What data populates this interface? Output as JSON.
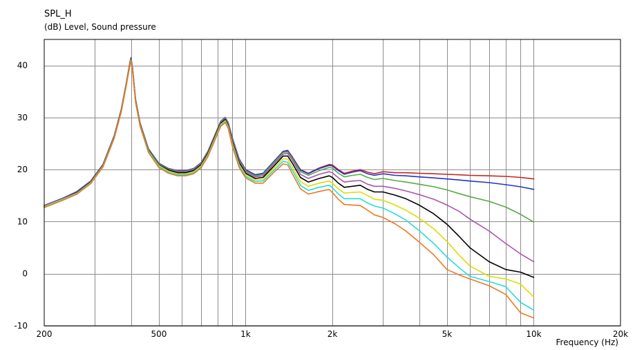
{
  "chart_data": {
    "type": "line",
    "title": "SPL_H",
    "ylabel": "(dB)  Level, Sound pressure",
    "xlabel": "Frequency  (Hz)",
    "x_scale": "log",
    "xlim": [
      200,
      20000
    ],
    "ylim": [
      -10,
      45
    ],
    "grid": true,
    "x_tick_labels": [
      {
        "value": 200,
        "label": "200"
      },
      {
        "value": 500,
        "label": "500"
      },
      {
        "value": 1000,
        "label": "1k"
      },
      {
        "value": 2000,
        "label": "2k"
      },
      {
        "value": 5000,
        "label": "5k"
      },
      {
        "value": 10000,
        "label": "10k"
      },
      {
        "value": 20000,
        "label": "20k"
      }
    ],
    "x_grid_values": [
      300,
      400,
      500,
      600,
      700,
      800,
      900,
      1000,
      2000,
      3000,
      4000,
      5000,
      6000,
      7000,
      8000,
      9000,
      10000
    ],
    "y_ticks": [
      -10,
      0,
      10,
      20,
      30,
      40
    ],
    "x": [
      200,
      230,
      260,
      290,
      320,
      350,
      370,
      385,
      395,
      400,
      405,
      415,
      430,
      460,
      500,
      540,
      580,
      620,
      660,
      700,
      740,
      780,
      820,
      850,
      870,
      900,
      950,
      1000,
      1080,
      1150,
      1250,
      1350,
      1400,
      1450,
      1550,
      1650,
      1800,
      1950,
      2000,
      2100,
      2200,
      2350,
      2500,
      2650,
      2800,
      3000,
      3300,
      3600,
      4000,
      4500,
      5000,
      5500,
      6000,
      7000,
      8000,
      9000,
      10000
    ],
    "series": [
      {
        "color": "#cc2222",
        "values": [
          13.1,
          14.4,
          15.8,
          17.8,
          21.0,
          26.5,
          31.5,
          36.5,
          40.0,
          41.5,
          39.5,
          33.5,
          29.0,
          24.0,
          21.2,
          20.2,
          19.8,
          19.8,
          20.2,
          21.3,
          23.5,
          26.5,
          29.3,
          30.0,
          29.0,
          26.0,
          22.0,
          20.0,
          19.0,
          19.3,
          21.5,
          23.5,
          23.7,
          22.5,
          20.0,
          19.3,
          20.3,
          21.0,
          20.9,
          20.0,
          19.3,
          19.7,
          20.0,
          19.5,
          19.2,
          19.6,
          19.4,
          19.4,
          19.3,
          19.2,
          19.1,
          19.0,
          18.9,
          18.8,
          18.7,
          18.5,
          18.2
        ]
      },
      {
        "color": "#2233cc",
        "values": [
          13.1,
          14.4,
          15.8,
          17.8,
          21.0,
          26.5,
          31.5,
          36.5,
          40.0,
          41.5,
          39.5,
          33.5,
          29.0,
          24.0,
          21.2,
          20.2,
          19.8,
          19.8,
          20.2,
          21.3,
          23.5,
          26.5,
          29.3,
          30.0,
          29.0,
          26.0,
          22.0,
          20.0,
          19.0,
          19.3,
          21.5,
          23.5,
          23.6,
          22.4,
          19.9,
          19.2,
          20.2,
          20.8,
          20.7,
          19.8,
          19.1,
          19.5,
          19.8,
          19.2,
          18.9,
          19.2,
          18.9,
          18.8,
          18.6,
          18.4,
          18.2,
          18.0,
          17.8,
          17.5,
          17.1,
          16.7,
          16.2
        ]
      },
      {
        "color": "#55aa44",
        "values": [
          13.0,
          14.3,
          15.7,
          17.7,
          20.9,
          26.4,
          31.4,
          36.4,
          39.9,
          41.4,
          39.4,
          33.4,
          28.9,
          23.9,
          21.1,
          20.1,
          19.7,
          19.7,
          20.1,
          21.2,
          23.4,
          26.4,
          29.2,
          29.9,
          28.9,
          25.8,
          21.8,
          19.8,
          18.8,
          19.1,
          21.3,
          23.3,
          23.4,
          22.2,
          19.6,
          18.9,
          19.8,
          20.4,
          20.3,
          19.3,
          18.6,
          18.9,
          19.1,
          18.5,
          18.1,
          18.3,
          17.9,
          17.6,
          17.2,
          16.7,
          16.1,
          15.4,
          14.8,
          13.9,
          12.8,
          11.4,
          9.9
        ]
      },
      {
        "color": "#aa55aa",
        "values": [
          13.0,
          14.3,
          15.7,
          17.7,
          20.9,
          26.4,
          31.4,
          36.4,
          39.9,
          41.3,
          39.3,
          33.3,
          28.8,
          23.8,
          21.0,
          20.0,
          19.6,
          19.6,
          20.0,
          21.1,
          23.3,
          26.3,
          29.1,
          29.8,
          28.8,
          25.6,
          21.6,
          19.6,
          18.6,
          18.8,
          21.0,
          23.0,
          23.1,
          21.9,
          19.1,
          18.3,
          19.1,
          19.6,
          19.4,
          18.4,
          17.6,
          17.8,
          17.9,
          17.2,
          16.8,
          16.8,
          16.4,
          15.9,
          15.2,
          14.3,
          13.2,
          12.0,
          10.5,
          8.2,
          5.8,
          3.8,
          2.3
        ]
      },
      {
        "color": "#000000",
        "values": [
          12.9,
          14.2,
          15.6,
          17.6,
          20.8,
          26.3,
          31.3,
          36.3,
          39.8,
          41.2,
          39.2,
          33.2,
          28.7,
          23.7,
          20.9,
          19.9,
          19.4,
          19.4,
          19.8,
          20.9,
          23.1,
          26.1,
          28.9,
          29.6,
          28.5,
          25.3,
          21.3,
          19.3,
          18.3,
          18.5,
          20.6,
          22.6,
          22.6,
          21.3,
          18.5,
          17.6,
          18.3,
          18.8,
          18.5,
          17.4,
          16.6,
          16.8,
          17.0,
          16.2,
          15.7,
          15.7,
          15.1,
          14.4,
          13.2,
          11.5,
          9.5,
          7.2,
          5.0,
          2.3,
          0.8,
          0.3,
          -0.7
        ]
      },
      {
        "color": "#dddd00",
        "values": [
          12.9,
          14.2,
          15.5,
          17.5,
          20.7,
          26.2,
          31.2,
          36.2,
          39.7,
          41.1,
          39.1,
          33.1,
          28.6,
          23.6,
          20.8,
          19.7,
          19.2,
          19.2,
          19.6,
          20.7,
          22.9,
          25.9,
          28.7,
          29.4,
          28.3,
          25.0,
          21.0,
          19.0,
          18.0,
          18.1,
          20.2,
          22.1,
          22.0,
          20.6,
          17.7,
          16.8,
          17.4,
          17.8,
          17.4,
          16.3,
          15.5,
          15.6,
          15.7,
          15.0,
          14.3,
          14.1,
          13.2,
          12.2,
          10.7,
          8.6,
          6.2,
          3.6,
          1.5,
          -0.5,
          -1.0,
          -2.0,
          -4.5
        ]
      },
      {
        "color": "#22dddd",
        "values": [
          12.8,
          14.1,
          15.4,
          17.4,
          20.6,
          26.1,
          31.1,
          36.1,
          39.6,
          41.0,
          39.0,
          33.0,
          28.5,
          23.5,
          20.6,
          19.5,
          19.0,
          19.0,
          19.4,
          20.5,
          22.7,
          25.7,
          28.5,
          29.2,
          28.1,
          24.7,
          20.7,
          18.7,
          17.7,
          17.8,
          19.8,
          21.6,
          21.4,
          20.0,
          17.0,
          16.0,
          16.6,
          17.0,
          16.5,
          15.3,
          14.4,
          14.4,
          14.4,
          13.6,
          13.0,
          12.6,
          11.5,
          10.3,
          8.3,
          5.8,
          3.2,
          1.2,
          -0.5,
          -1.5,
          -2.5,
          -5.5,
          -7.0
        ]
      },
      {
        "color": "#ee7722",
        "values": [
          12.7,
          14.0,
          15.3,
          17.3,
          20.5,
          26.0,
          31.0,
          36.0,
          39.5,
          40.9,
          38.9,
          32.9,
          28.4,
          23.3,
          20.4,
          19.3,
          18.8,
          18.8,
          19.2,
          20.3,
          22.5,
          25.5,
          28.3,
          29.0,
          27.9,
          24.4,
          20.4,
          18.4,
          17.4,
          17.4,
          19.4,
          21.1,
          20.9,
          19.3,
          16.3,
          15.3,
          15.8,
          16.2,
          15.6,
          14.3,
          13.3,
          13.2,
          13.1,
          12.2,
          11.3,
          10.8,
          9.6,
          8.2,
          6.1,
          3.6,
          0.8,
          -0.2,
          -1.0,
          -2.3,
          -4.0,
          -7.5,
          -8.5
        ]
      }
    ]
  }
}
